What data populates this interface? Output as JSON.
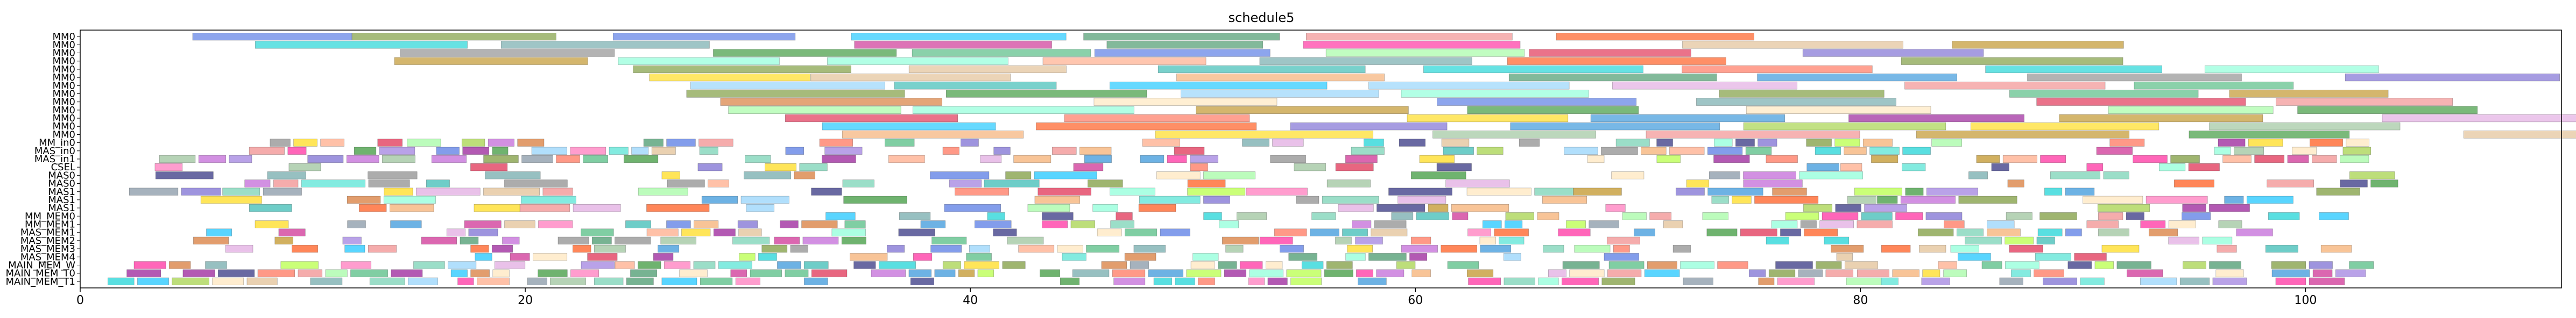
{
  "chart_data": {
    "type": "gantt",
    "title": "schedule5",
    "xlabel": "",
    "ylabel": "",
    "xlim": [
      0,
      111.5
    ],
    "xticks": [
      0,
      20,
      40,
      60,
      80,
      100
    ],
    "grid": false,
    "rows": [
      "MM0",
      "MM0",
      "MM0",
      "MM0",
      "MM0",
      "MM0",
      "MM0",
      "MM0",
      "MM0",
      "MM0",
      "MM0",
      "MM0",
      "MM0",
      "MM_in0",
      "MAS_in0",
      "MAS_in1",
      "CSEL",
      "MAS0",
      "MAS0",
      "MAS1",
      "MAS1",
      "MAS1",
      "MM_MEM0",
      "MM_MEM1",
      "MAS_MEM1",
      "MAS_MEM2",
      "MAS_MEM3",
      "MAS_MEM4",
      "MAIN_MEM_W",
      "MAIN_MEM_T0",
      "MAIN_MEM_T1"
    ],
    "row_label_texts": [
      "MM0",
      "MM0",
      "MM0",
      "MM0",
      "MM0",
      "MM0",
      "MM0",
      "MM0",
      "MM0",
      "MM0",
      "MM0",
      "MM0",
      "MM0",
      "MM_in0",
      "MAS_in0",
      "MAS_in1",
      "CSEL",
      "MAS0",
      "MAS0",
      "MAS1",
      "MAS1",
      "MAS1",
      "MM_MEM0",
      "MM_MEM1",
      "MAS_MEM1",
      "MAS_MEM2",
      "MAS_MEM3",
      "MAS_MEM4",
      "MAIN_MEM_W",
      "MAIN_MEM_T0",
      "MAIN_MEM_T1"
    ],
    "palette": [
      "#6b8e23",
      "#c71585",
      "#808080",
      "#1e88d6",
      "#2e8b57",
      "#9acd32",
      "#3cb371",
      "#8fbc8f",
      "#20b2aa",
      "#778899",
      "#ff6347",
      "#ffa07a",
      "#d2691e",
      "#9370db",
      "#ff69b4",
      "#00ced1",
      "#dda0dd",
      "#ffd700",
      "#adff2f",
      "#4169e1",
      "#f08080",
      "#66cdaa",
      "#ba55d3",
      "#b8860b",
      "#87cefa",
      "#dc143c",
      "#7fffd4",
      "#deb887",
      "#5f9ea0",
      "#228b22",
      "#ff1493",
      "#00bfff",
      "#98fb98",
      "#f4a460",
      "#6a5acd",
      "#ffe4b5",
      "#ff4500",
      "#8b008b",
      "#191970",
      "#40e0d0"
    ]
  }
}
